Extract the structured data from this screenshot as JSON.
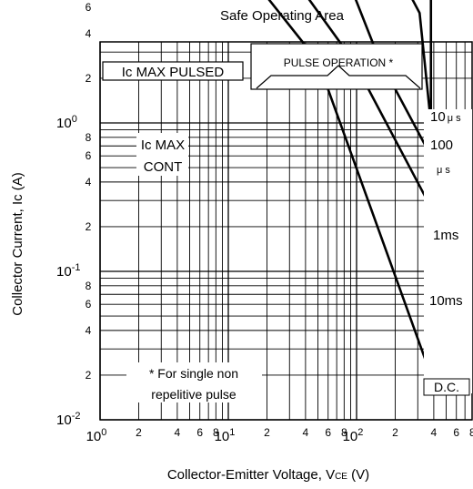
{
  "chart_data": {
    "type": "line",
    "title": "Safe Operating Area",
    "xlabel": "Collector-Emitter Voltage, V",
    "xlabel_sub": "CE",
    "xlabel_unit": " (V)",
    "ylabel": "Collector Current, Ic (A)",
    "x_scale": "log",
    "y_scale": "log",
    "xlim": [
      1,
      600
    ],
    "ylim": [
      0.01,
      60
    ],
    "grid": true,
    "x_major_ticks": [
      {
        "value": 1,
        "base": "10",
        "exp": "0"
      },
      {
        "value": 10,
        "base": "10",
        "exp": "1"
      },
      {
        "value": 100,
        "base": "10",
        "exp": "2"
      }
    ],
    "x_minor_ticks": [
      {
        "value": 2,
        "label": "2"
      },
      {
        "value": 4,
        "label": "4"
      },
      {
        "value": 6,
        "label": "6"
      },
      {
        "value": 8,
        "label": "8"
      },
      {
        "value": 20,
        "label": "2"
      },
      {
        "value": 40,
        "label": "4"
      },
      {
        "value": 60,
        "label": "6"
      },
      {
        "value": 80,
        "label": "8"
      },
      {
        "value": 200,
        "label": "2"
      },
      {
        "value": 400,
        "label": "4"
      },
      {
        "value": 600,
        "label": "6"
      },
      {
        "value": 800,
        "label": "8"
      }
    ],
    "y_major_ticks": [
      {
        "value": 0.01,
        "base": "10",
        "exp": "-2"
      },
      {
        "value": 0.1,
        "base": "10",
        "exp": "-1"
      },
      {
        "value": 1,
        "base": "10",
        "exp": "0"
      },
      {
        "value": 10,
        "base": "10",
        "exp": "1"
      }
    ],
    "y_minor_ticks": [
      {
        "value": 0.02,
        "label": "2"
      },
      {
        "value": 0.04,
        "label": "4"
      },
      {
        "value": 0.06,
        "label": "6"
      },
      {
        "value": 0.08,
        "label": "8"
      },
      {
        "value": 0.2,
        "label": "2"
      },
      {
        "value": 0.4,
        "label": "4"
      },
      {
        "value": 0.6,
        "label": "6"
      },
      {
        "value": 0.8,
        "label": "8"
      },
      {
        "value": 2,
        "label": "2"
      },
      {
        "value": 4,
        "label": "4"
      },
      {
        "value": 6,
        "label": "6"
      },
      {
        "value": 8,
        "label": "8"
      },
      {
        "value": 20,
        "label": "2"
      },
      {
        "value": 40,
        "label": "4"
      }
    ],
    "series": [
      {
        "label": "10 μs",
        "points": [
          [
            1,
            30
          ],
          [
            250,
            30
          ],
          [
            380,
            30
          ]
        ]
      },
      {
        "label": "100 μs",
        "points": [
          [
            1,
            30
          ],
          [
            110,
            30
          ],
          [
            310,
            5.5
          ],
          [
            380,
            1.0
          ]
        ]
      },
      {
        "label": "1ms",
        "points": [
          [
            1,
            30
          ],
          [
            50,
            30
          ],
          [
            150,
            2.7
          ],
          [
            380,
            0.6
          ]
        ]
      },
      {
        "label": "10ms",
        "points": [
          [
            1,
            15
          ],
          [
            22,
            15
          ],
          [
            95,
            2.6
          ],
          [
            380,
            0.27
          ]
        ]
      },
      {
        "label": "D.C.",
        "points": [
          [
            1,
            15
          ],
          [
            10,
            15
          ],
          [
            50,
            2.6
          ],
          [
            380,
            0.02
          ]
        ]
      }
    ],
    "annotations": {
      "ic_max_pulsed": "Ic MAX PULSED",
      "ic_max_cont_line1": "Ic MAX",
      "ic_max_cont_line2": "CONT",
      "pulse_operation": "PULSE OPERATION *",
      "footnote_line1": "* For single non",
      "footnote_line2": "repelitive pulse",
      "label_10us_num": "10",
      "label_10us_unit": "μ s",
      "label_100us_num": "100",
      "label_100us_unit": "μ s",
      "label_1ms": "1ms",
      "label_10ms": "10ms",
      "label_dc": "D.C."
    }
  }
}
